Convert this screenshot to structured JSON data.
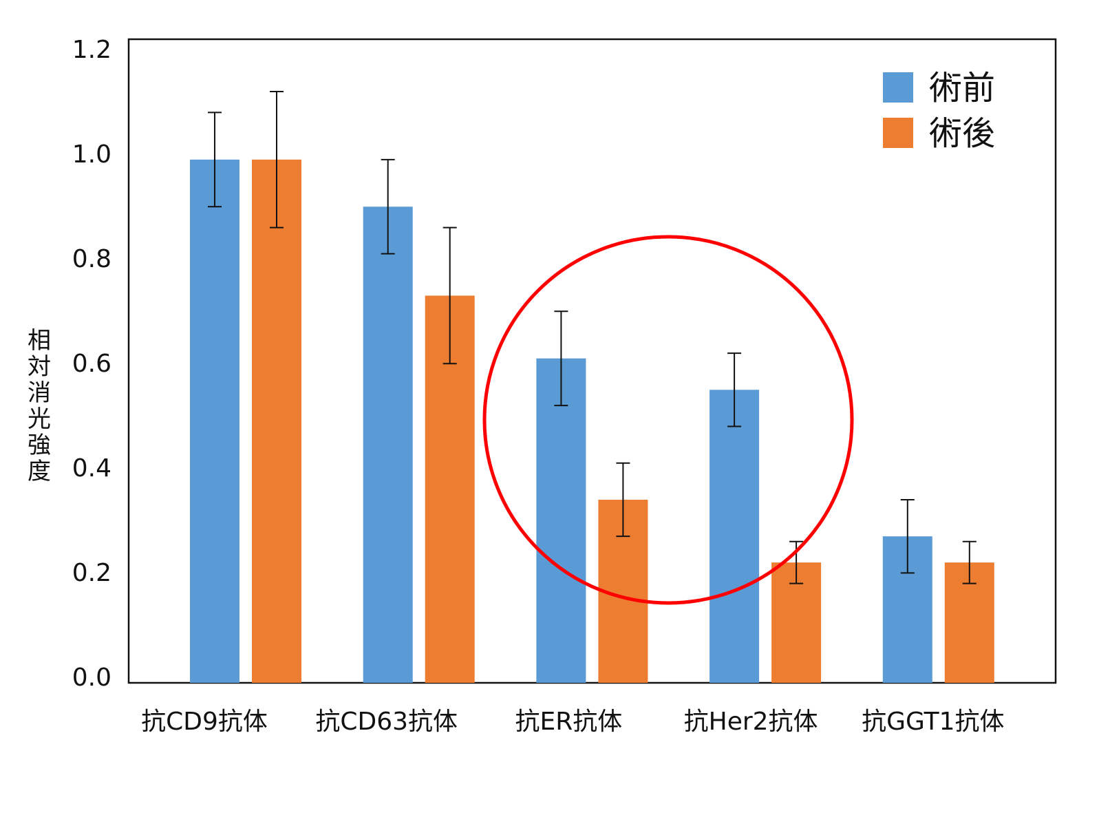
{
  "chart_data": {
    "type": "bar",
    "y_label": "相対消光強度",
    "categories": [
      "抗CD9抗体",
      "抗CD63抗体",
      "抗ER抗体",
      "抗Her2抗体",
      "抗GGT1抗体"
    ],
    "series": [
      {
        "name": "術前",
        "color": "#5b9bd5",
        "values": [
          1.0,
          0.91,
          0.62,
          0.56,
          0.28
        ],
        "errors": [
          0.09,
          0.09,
          0.09,
          0.07,
          0.07
        ]
      },
      {
        "name": "術後",
        "color": "#ed7d31",
        "values": [
          1.0,
          0.74,
          0.35,
          0.23,
          0.23
        ],
        "errors": [
          0.13,
          0.13,
          0.07,
          0.04,
          0.04
        ]
      }
    ],
    "ylim": [
      0,
      1.23
    ],
    "yticks": [
      {
        "value": 0,
        "label": "0.0"
      },
      0.2,
      0.4,
      0.6,
      0.8,
      {
        "value": 1,
        "label": "1.0"
      },
      1.2
    ],
    "legend": "upper right"
  }
}
